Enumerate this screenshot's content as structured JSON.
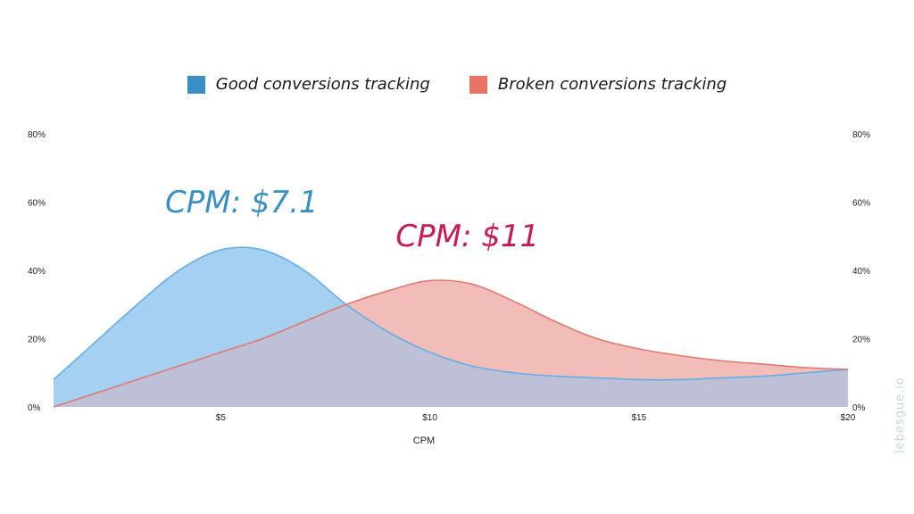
{
  "chart_data": {
    "type": "area",
    "legend_position": "top-center",
    "series": [
      {
        "name": "Good conversions tracking",
        "legend_color": "#3a8fc4",
        "line_color": "#62aee8",
        "fill_color": "#a6d0f2",
        "x": [
          1,
          2,
          3,
          4,
          5,
          6,
          7,
          8,
          9,
          10,
          11,
          12,
          13,
          14,
          15,
          16,
          17,
          18,
          19,
          20
        ],
        "values": [
          8,
          19,
          30,
          40,
          46,
          46,
          40,
          30,
          22,
          16,
          12,
          10,
          9,
          8.5,
          8,
          8,
          8.5,
          9,
          10,
          11
        ]
      },
      {
        "name": "Broken conversions tracking",
        "legend_color": "#e87563",
        "line_color": "#e07a70",
        "fill_color": "#f2bcb8",
        "x": [
          1,
          2,
          3,
          4,
          5,
          6,
          7,
          8,
          9,
          10,
          11,
          12,
          13,
          14,
          15,
          16,
          17,
          18,
          19,
          20
        ],
        "values": [
          0,
          4,
          8,
          12,
          16,
          20,
          25,
          30,
          34,
          37,
          36,
          31,
          25,
          20,
          17,
          15,
          13.5,
          12.5,
          11.5,
          11
        ]
      }
    ],
    "overlap_color": "#bdc0d6",
    "xlim": [
      1,
      20
    ],
    "ylim": [
      0,
      80
    ],
    "x_ticks": [
      {
        "value": 5,
        "label": "$5"
      },
      {
        "value": 10,
        "label": "$10"
      },
      {
        "value": 15,
        "label": "$15"
      },
      {
        "value": 20,
        "label": "$20"
      }
    ],
    "y_ticks": [
      {
        "value": 0,
        "label": "0%"
      },
      {
        "value": 20,
        "label": "20%"
      },
      {
        "value": 40,
        "label": "40%"
      },
      {
        "value": 60,
        "label": "60%"
      },
      {
        "value": 80,
        "label": "80%"
      }
    ],
    "xlabel": "CPM",
    "ylabel": "",
    "grid": false,
    "annotations": [
      {
        "name": "good-cpm-annotation",
        "text": "CPM: $7.1",
        "x": 5.5,
        "y": 57,
        "color": "#3a8fc4"
      },
      {
        "name": "broken-cpm-annotation",
        "text": "CPM: $11",
        "x": 10.9,
        "y": 47,
        "color": "#c8195a"
      }
    ]
  },
  "watermark": "lebesgue.io"
}
